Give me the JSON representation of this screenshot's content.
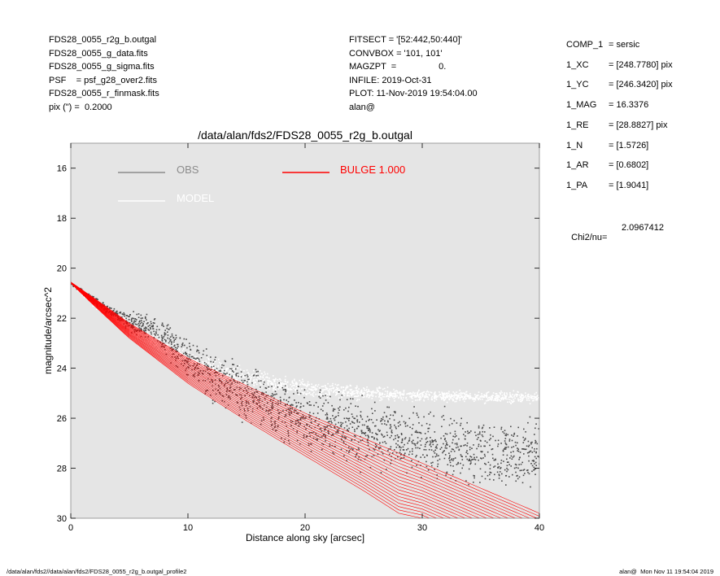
{
  "header": {
    "left_lines": [
      "FDS28_0055_r2g_b.outgal",
      "FDS28_0055_g_data.fits",
      "FDS28_0055_g_sigma.fits",
      "PSF    = psf_g28_over2.fits",
      "FDS28_0055_r_finmask.fits",
      "pix (\") =  0.2000"
    ],
    "mid_lines": [
      "FITSECT = '[52:442,50:440]'",
      "CONVBOX = '101, 101'",
      "MAGZPT  =                 0.",
      "INFILE: 2019-Oct-31",
      "PLOT: 11-Nov-2019 19:54:04.00",
      "alan@"
    ]
  },
  "params": [
    {
      "key": "COMP_1",
      "value": "= sersic"
    },
    {
      "key": "1_XC",
      "value": "= [248.7780] pix"
    },
    {
      "key": "1_YC",
      "value": "= [246.3420] pix"
    },
    {
      "key": "1_MAG",
      "value": "= 16.3376"
    },
    {
      "key": "1_RE",
      "value": "= [28.8827] pix"
    },
    {
      "key": "1_N",
      "value": "= [1.5726]"
    },
    {
      "key": "1_AR",
      "value": "= [0.6802]"
    },
    {
      "key": "1_PA",
      "value": "= [1.9041]"
    }
  ],
  "chi": {
    "label": "Chi2/nu=",
    "value": "2.0967412"
  },
  "footer": {
    "left": "/data/alan/fds2//data/alan/fds2/FDS28_0055_r2g_b.outgal_profile2",
    "right": "alan@  Mon Nov 11 19:54:04 2019"
  },
  "colors": {
    "plot_bg": "#e5e5e5",
    "obs": "#4a4a4a",
    "obs_legend": "#8c8c8c",
    "model": "#ffffff",
    "bulge": "#ff0000"
  },
  "chart_data": {
    "type": "scatter",
    "title": "/data/alan/fds2/FDS28_0055_r2g_b.outgal",
    "xlabel": "Distance along sky [arcsec]",
    "ylabel": "magnitude/arcsec^2",
    "xlim": [
      0,
      40
    ],
    "ylim": [
      30,
      15
    ],
    "y_inverted": true,
    "xticks": [
      "0",
      "10",
      "20",
      "30",
      "40"
    ],
    "yticks": [
      "16",
      "18",
      "20",
      "22",
      "24",
      "26",
      "28",
      "30"
    ],
    "legend": [
      {
        "name": "OBS",
        "color": "#8c8c8c"
      },
      {
        "name": "BULGE  1.000",
        "color": "#ff0000"
      },
      {
        "name": "MODEL",
        "color": "#ffffff"
      }
    ],
    "series": [
      {
        "name": "OBS",
        "points": [
          [
            0,
            20.6
          ],
          [
            2,
            21.3
          ],
          [
            4,
            21.9
          ],
          [
            5,
            22.1
          ],
          [
            6,
            22.3
          ],
          [
            7,
            22.4
          ],
          [
            8,
            22.8
          ],
          [
            10,
            23.6
          ],
          [
            12,
            24.3
          ],
          [
            15,
            25.1
          ],
          [
            20,
            26.0
          ],
          [
            25,
            26.6
          ],
          [
            30,
            27.0
          ],
          [
            35,
            27.4
          ],
          [
            40,
            27.6
          ]
        ],
        "spread": [
          0.05,
          0.2,
          0.3,
          0.5,
          0.7,
          0.8,
          0.9,
          1.1,
          1.3,
          1.5,
          1.7,
          1.8,
          1.8,
          1.8,
          1.8
        ]
      },
      {
        "name": "MODEL",
        "points": [
          [
            0,
            20.6
          ],
          [
            2,
            21.4
          ],
          [
            5,
            22.4
          ],
          [
            10,
            23.6
          ],
          [
            15,
            24.4
          ],
          [
            20,
            24.8
          ],
          [
            25,
            25.0
          ],
          [
            30,
            25.1
          ],
          [
            35,
            25.15
          ],
          [
            40,
            25.2
          ]
        ],
        "spread": [
          0.05,
          0.2,
          0.4,
          0.5,
          0.5,
          0.4,
          0.35,
          0.3,
          0.3,
          0.3
        ]
      },
      {
        "name": "BULGE  1.000",
        "inner": [
          [
            0,
            20.55
          ],
          [
            2,
            21.2
          ],
          [
            5,
            22.2
          ],
          [
            10,
            23.6
          ],
          [
            15,
            24.7
          ],
          [
            20,
            25.8
          ],
          [
            25,
            26.8
          ],
          [
            30,
            27.8
          ],
          [
            35,
            28.8
          ],
          [
            40,
            29.8
          ]
        ],
        "outer": [
          [
            0,
            20.6
          ],
          [
            2,
            21.5
          ],
          [
            5,
            22.8
          ],
          [
            10,
            24.6
          ],
          [
            15,
            26.1
          ],
          [
            20,
            27.5
          ],
          [
            25,
            28.9
          ],
          [
            28,
            29.8
          ],
          [
            30,
            30.0
          ]
        ]
      }
    ]
  }
}
